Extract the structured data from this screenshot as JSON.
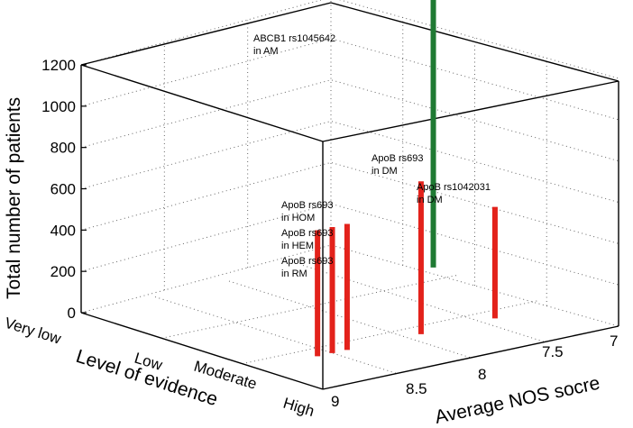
{
  "chart_data": {
    "type": "bar3d",
    "zlabel": "Total number of patients",
    "ylabel": "Level of evidence",
    "xlabel": "Average NOS socre",
    "z_ticks": [
      "0",
      "200",
      "400",
      "600",
      "800",
      "1000",
      "1200"
    ],
    "evidence_ticks": [
      "Very low",
      "Low",
      "Moderate",
      "High"
    ],
    "nos_ticks": [
      "9",
      "8.5",
      "8",
      "7.5",
      "7"
    ],
    "bars": [
      {
        "label": "ABCB1 rs1045642\nin AM",
        "evidence": "Very low",
        "nos": 7.0,
        "patients": 1300,
        "color": "#1f7a33"
      },
      {
        "label": "ApoB rs693\nin HOM",
        "evidence": "High",
        "nos": 8.6,
        "patients": 610,
        "color": "#e3221b"
      },
      {
        "label": "ApoB rs693\nin HEM",
        "evidence": "High",
        "nos": 8.5,
        "patients": 610,
        "color": "#e3221b"
      },
      {
        "label": "ApoB rs693\nin RM",
        "evidence": "High",
        "nos": 8.4,
        "patients": 610,
        "color": "#e3221b"
      },
      {
        "label": "ApoB rs693\nin DM",
        "evidence": "High",
        "nos": 7.9,
        "patients": 740,
        "color": "#e3221b"
      },
      {
        "label": "ApoB rs1042031\nin DM",
        "evidence": "High",
        "nos": 7.4,
        "patients": 540,
        "color": "#e3221b"
      }
    ]
  }
}
